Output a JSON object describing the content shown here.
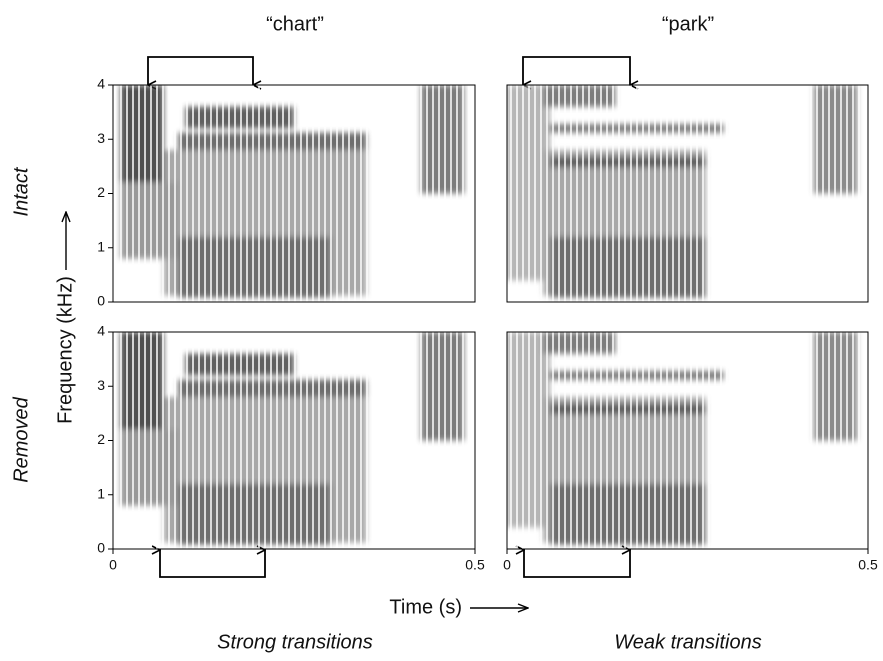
{
  "chart_data": [
    {
      "type": "spectrogram",
      "title": "“chart”",
      "xlim": [
        0,
        0.5
      ],
      "ylim": [
        0,
        4
      ],
      "yticks": [
        0,
        1,
        2,
        3,
        4
      ]
    },
    {
      "type": "spectrogram",
      "title": "“park”",
      "xlim": [
        0,
        0.5
      ],
      "ylim": [
        0,
        4
      ]
    },
    {
      "type": "spectrogram",
      "xlim": [
        0,
        0.5
      ],
      "ylim": [
        0,
        4
      ],
      "xticks": [
        0,
        0.5
      ],
      "yticks": [
        0,
        1,
        2,
        3,
        4
      ]
    },
    {
      "type": "spectrogram",
      "xlim": [
        0,
        0.5
      ],
      "ylim": [
        0,
        4
      ],
      "xticks": [
        0,
        0.5
      ]
    }
  ],
  "labels": {
    "row_top": "Intact",
    "row_bottom": "Removed",
    "ylabel": "Frequency (kHz)",
    "xlabel": "Time (s)",
    "col_left_caption": "Strong transitions",
    "col_right_caption": "Weak transitions"
  }
}
